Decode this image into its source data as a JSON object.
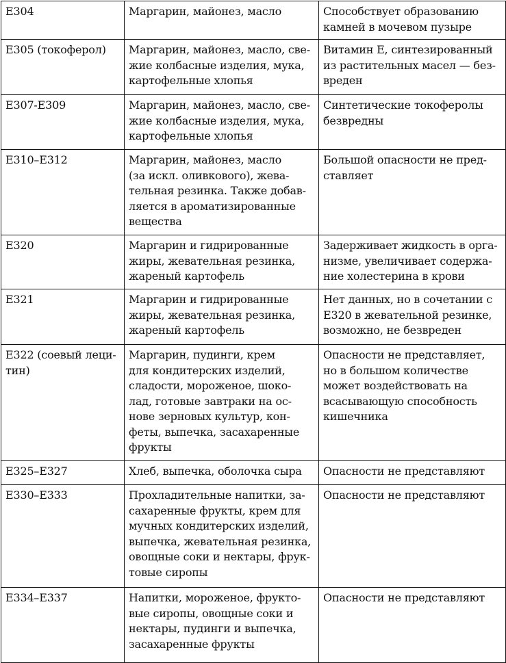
{
  "rows": [
    {
      "code": "E304",
      "products": "Маргарин, майонез, масло",
      "effect": "Способствует образованию\nкамней в мочевом пузыре"
    },
    {
      "code": "E305 (токоферол)",
      "products": "Маргарин, майонез, масло, све-\nжие колбасные изделия, мука,\nкартофельные хлопья",
      "effect": "Витамин E, синтезированный\nиз растительных масел — без-\nвреден"
    },
    {
      "code": "E307-E309",
      "products": "Маргарин, майонез, масло, све-\nжие колбасные изделия, мука,\nкартофельные хлопья",
      "effect": "Синтетические токоферолы\nбезвредны"
    },
    {
      "code": "E310–E312",
      "products": "Маргарин, майонез, масло\n(за искл. оливкового), жева-\nтельная резинка. Также добав-\nляется в ароматизированные\nвещества",
      "effect": "Большой опасности не пред-\nставляет"
    },
    {
      "code": "E320",
      "products": "Маргарин и гидрированные\nжиры, жевательная резинка,\nжареный картофель",
      "effect": "Задерживает жидкость в орга-\nнизме, увеличивает содержа-\nние холестерина в крови"
    },
    {
      "code": "E321",
      "products": "Маргарин и гидрированные\nжиры, жевательная резинка,\nжареный картофель",
      "effect": "Нет данных, но в сочетании с\nE320 в жевательной резинке,\nвозможно, не безвреден"
    },
    {
      "code": "E322 (соевый леци-\nтин)",
      "products": "Маргарин, пудинги, крем\nдля кондитерских изделий,\nсладости, мороженое, шоко-\nлад, готовые завтраки на ос-\nнове зерновых культур, кон-\nфеты, выпечка, засахаренные\nфрукты",
      "effect": "Опасности не представляет,\nно в большом количестве\nможет воздействовать на\nвсасывающую способность\nкишечника"
    },
    {
      "code": "E325–E327",
      "products": "Хлеб, выпечка, оболочка сыра",
      "effect": "Опасности не представляют"
    },
    {
      "code": "E330–E333",
      "products": "Прохладительные напитки, за-\nсахаренные фрукты, крем для\nмучных кондитерских изделий,\nвыпечка, жевательная резинка,\nовощные соки и нектары, фрук-\nтовые сиропы",
      "effect": "Опасности не представляют"
    },
    {
      "code": "E334–E337",
      "products": "Напитки, мороженое, фрукто-\nвые сиропы, овощные соки и\nнектары, пудинги и выпечка,\nзасахаренные фрукты",
      "effect": "Опасности не представляют"
    }
  ]
}
